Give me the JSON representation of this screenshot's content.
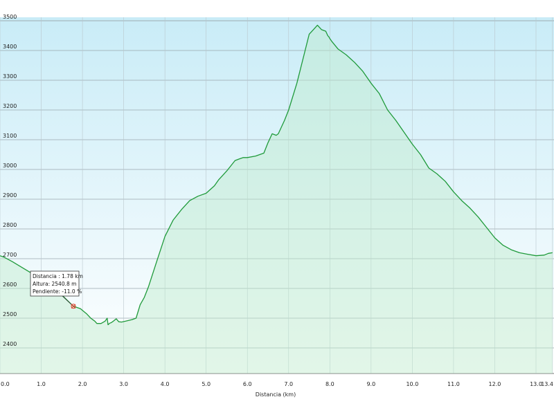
{
  "chart_data": {
    "type": "area",
    "title": "",
    "xlabel": "Distancia (km)",
    "ylabel": "",
    "xlim": [
      0,
      13.4
    ],
    "ylim": [
      2300,
      3500
    ],
    "x_ticks": [
      "0.0",
      "1.0",
      "2.0",
      "3.0",
      "4.0",
      "5.0",
      "6.0",
      "7.0",
      "8.0",
      "9.0",
      "10.0",
      "11.0",
      "12.0",
      "13.0",
      "13.4"
    ],
    "y_ticks": [
      "2400",
      "2500",
      "2600",
      "2700",
      "2800",
      "2900",
      "3000",
      "3100",
      "3200",
      "3300",
      "3400",
      "3500"
    ],
    "grid": true,
    "line_color": "#1f9a3a",
    "fill_top_color": "#c9ecf7",
    "fill_bottom_color": "#ffffff",
    "series": [
      {
        "x": [
          0,
          0.1,
          0.3,
          0.6,
          0.9,
          1.2,
          1.5,
          1.78,
          1.95,
          2.1,
          2.2,
          2.3,
          2.35,
          2.45,
          2.55,
          2.6,
          2.62,
          2.66,
          2.7,
          2.75,
          2.82,
          2.88,
          2.95,
          3.05,
          3.2,
          3.3,
          3.4,
          3.5,
          3.6,
          3.8,
          4.0,
          4.2,
          4.4,
          4.6,
          4.8,
          5.0,
          5.2,
          5.3,
          5.5,
          5.7,
          5.8,
          5.9,
          6.0,
          6.2,
          6.4,
          6.5,
          6.6,
          6.7,
          6.75,
          6.8,
          6.9,
          7.0,
          7.2,
          7.4,
          7.5,
          7.6,
          7.7,
          7.8,
          7.9,
          7.95,
          7.98,
          8.0,
          8.05,
          8.2,
          8.4,
          8.6,
          8.8,
          9.0,
          9.2,
          9.4,
          9.6,
          9.8,
          10.0,
          10.2,
          10.4,
          10.6,
          10.8,
          11.0,
          11.2,
          11.4,
          11.6,
          11.8,
          12.0,
          12.2,
          12.4,
          12.6,
          12.8,
          13.0,
          13.2,
          13.3,
          13.4
        ],
        "y": [
          2710,
          2705,
          2690,
          2665,
          2640,
          2610,
          2578,
          2540,
          2532,
          2515,
          2500,
          2490,
          2482,
          2482,
          2490,
          2500,
          2478,
          2483,
          2485,
          2490,
          2498,
          2488,
          2487,
          2490,
          2495,
          2500,
          2545,
          2570,
          2605,
          2690,
          2775,
          2830,
          2865,
          2895,
          2910,
          2920,
          2945,
          2965,
          2995,
          3030,
          3035,
          3040,
          3040,
          3045,
          3055,
          3090,
          3120,
          3115,
          3120,
          3135,
          3165,
          3200,
          3290,
          3400,
          3455,
          3470,
          3485,
          3470,
          3465,
          3450,
          3445,
          3440,
          3430,
          3405,
          3385,
          3360,
          3330,
          3290,
          3255,
          3200,
          3165,
          3125,
          3085,
          3050,
          3005,
          2985,
          2960,
          2925,
          2895,
          2870,
          2840,
          2805,
          2770,
          2745,
          2730,
          2720,
          2715,
          2710,
          2712,
          2718,
          2720
        ]
      }
    ],
    "tooltip": {
      "x": 1.78,
      "y": 2540,
      "lines": [
        "Distancia : 1.78 km",
        "Altura: 2540.8 m",
        "Pendiente: -11.0 %"
      ]
    }
  }
}
